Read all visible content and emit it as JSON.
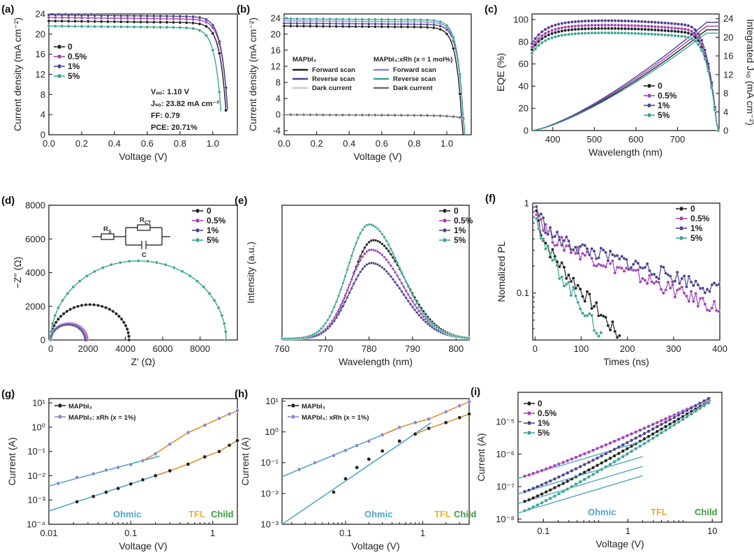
{
  "figure": {
    "colors": {
      "0": "#1f1f1f",
      "0.5%": "#a23fb5",
      "1%": "#4b3f8f",
      "5%": "#3aa394",
      "light_purple": "#8b86d1",
      "light_gray": "#c8c8c8",
      "dark_gray": "#6e6e6e",
      "fit": "#4da6c8",
      "fit_orange": "#e0902a",
      "ohmic": "#4da6c8",
      "tfl": "#e8b13a",
      "child": "#3a9a3a"
    }
  },
  "chart_data": [
    {
      "id": "a",
      "panel_label": "(a)",
      "type": "line",
      "xlabel": "Voltage (V)",
      "ylabel": "Current density (mA cm⁻²)",
      "xlim": [
        0,
        1.15
      ],
      "ylim": [
        0,
        24
      ],
      "xticks": [
        0.0,
        0.2,
        0.4,
        0.6,
        0.8,
        1.0
      ],
      "xtick_labels": [
        "0.0",
        "0.2",
        "0.4",
        "0.6",
        "0.8",
        "1.0"
      ],
      "yticks": [
        0,
        4,
        8,
        12,
        16,
        20,
        24
      ],
      "ytick_labels": [
        "0",
        "4",
        "8",
        "12",
        "16",
        "20",
        "24"
      ],
      "series": [
        {
          "name": "0",
          "jsc": 22.6,
          "voc": 1.09
        },
        {
          "name": "0.5%",
          "jsc": 23.3,
          "voc": 1.1
        },
        {
          "name": "1%",
          "jsc": 23.82,
          "voc": 1.1
        },
        {
          "name": "5%",
          "jsc": 21.6,
          "voc": 1.06
        }
      ],
      "annotations": [
        "Vₒₒ: 1.10 V",
        "Jₛₒ: 23.82 mA cm⁻²",
        "FF: 0.79",
        "PCE: 20.71%"
      ]
    },
    {
      "id": "b",
      "panel_label": "(b)",
      "type": "line",
      "xlabel": "Voltage (V)",
      "ylabel": "Current density (mA cm⁻²)",
      "xlim": [
        0,
        1.15
      ],
      "ylim": [
        -5,
        25
      ],
      "xticks": [
        0.0,
        0.2,
        0.4,
        0.6,
        0.8,
        1.0
      ],
      "xtick_labels": [
        "0.0",
        "0.2",
        "0.4",
        "0.6",
        "0.8",
        "1.0"
      ],
      "yticks": [
        -4,
        0,
        4,
        8,
        12,
        16,
        20,
        24
      ],
      "ytick_labels": [
        "-4",
        "0",
        "4",
        "8",
        "12",
        "16",
        "20",
        "24"
      ],
      "legend_groups": [
        {
          "title": "MAPbI₃",
          "entries": [
            "Forward scan",
            "Reverse scan",
            "Dark current"
          ]
        },
        {
          "title": "MAPbI₃:xRh (x = 1 mol%)",
          "entries": [
            "Forward scan",
            "Reverse scan",
            "Dark current"
          ]
        }
      ],
      "series": [
        {
          "group": 0,
          "entry": "Forward scan",
          "jsc": 22.0,
          "voc": 1.09
        },
        {
          "group": 0,
          "entry": "Reverse scan",
          "jsc": 22.7,
          "voc": 1.1
        },
        {
          "group": 0,
          "entry": "Dark current",
          "dark": true
        },
        {
          "group": 1,
          "entry": "Forward scan",
          "jsc": 23.3,
          "voc": 1.1
        },
        {
          "group": 1,
          "entry": "Reverse scan",
          "jsc": 23.8,
          "voc": 1.1
        },
        {
          "group": 1,
          "entry": "Dark current",
          "dark": true
        }
      ]
    },
    {
      "id": "c",
      "panel_label": "(c)",
      "type": "line",
      "xlabel": "Wavelength (nm)",
      "ylabel": "EQE (%)",
      "ylabel_right": "Integrated Jₛₒ (mA cm⁻²)",
      "xlim": [
        350,
        800
      ],
      "ylim": [
        0,
        105
      ],
      "ylim_right": [
        0,
        25
      ],
      "xticks": [
        400,
        500,
        600,
        700
      ],
      "xtick_labels": [
        "400",
        "500",
        "600",
        "700"
      ],
      "yticks": [
        0,
        20,
        40,
        60,
        80,
        100
      ],
      "ytick_labels": [
        "0",
        "20",
        "40",
        "60",
        "80",
        "100"
      ],
      "yticks_right": [
        0,
        4,
        8,
        12,
        16,
        20,
        24
      ],
      "ytick_labels_right": [
        "0",
        "4",
        "8",
        "12",
        "16",
        "20",
        "24"
      ],
      "series": [
        {
          "name": "0",
          "eqe_peak": 92,
          "integrated_end": 21.6
        },
        {
          "name": "0.5%",
          "eqe_peak": 95,
          "integrated_end": 22.4
        },
        {
          "name": "1%",
          "eqe_peak": 99,
          "integrated_end": 23.2
        },
        {
          "name": "5%",
          "eqe_peak": 88,
          "integrated_end": 20.9
        }
      ]
    },
    {
      "id": "d",
      "panel_label": "(d)",
      "type": "line",
      "xlabel": "Z' (Ω)",
      "ylabel": "−Z'' (Ω)",
      "xlim": [
        -100,
        10000
      ],
      "ylim": [
        0,
        8000
      ],
      "xticks": [
        0,
        2000,
        4000,
        6000,
        8000
      ],
      "xtick_labels": [
        "0",
        "2000",
        "4000",
        "6000",
        "8000"
      ],
      "yticks": [
        0,
        2000,
        4000,
        6000,
        8000
      ],
      "ytick_labels": [
        "0",
        "2000",
        "4000",
        "6000",
        "8000"
      ],
      "circuit_labels": [
        "R",
        "S",
        "R",
        "CT",
        "C"
      ],
      "series": [
        {
          "name": "0",
          "rct": 4200
        },
        {
          "name": "0.5%",
          "rct": 1950
        },
        {
          "name": "1%",
          "rct": 1850
        },
        {
          "name": "5%",
          "rct": 9400
        }
      ]
    },
    {
      "id": "e",
      "panel_label": "(e)",
      "type": "line",
      "xlabel": "Wavelength (nm)",
      "ylabel": "Intensity (a.u.)",
      "xlim": [
        760,
        803
      ],
      "ylim": [
        0,
        1.12
      ],
      "xticks": [
        760,
        770,
        780,
        790,
        800
      ],
      "xtick_labels": [
        "760",
        "770",
        "780",
        "790",
        "800"
      ],
      "series": [
        {
          "name": "0",
          "peak_nm": 781,
          "peak": 0.82
        },
        {
          "name": "0.5%",
          "peak_nm": 780.5,
          "peak": 0.74
        },
        {
          "name": "1%",
          "peak_nm": 780.5,
          "peak": 0.63
        },
        {
          "name": "5%",
          "peak_nm": 780,
          "peak": 0.95
        }
      ]
    },
    {
      "id": "f",
      "panel_label": "(f)",
      "type": "line",
      "xlabel": "Times (ns)",
      "ylabel": "Nomalized PL",
      "xlim": [
        -5,
        400
      ],
      "ylim": [
        0.03,
        1.0
      ],
      "yscale": "log",
      "xticks": [
        0,
        100,
        200,
        300,
        400
      ],
      "xtick_labels": [
        "0",
        "100",
        "200",
        "300",
        "400"
      ],
      "yticks": [
        0.1,
        1
      ],
      "ytick_labels": [
        "0.1",
        "1"
      ],
      "series": [
        {
          "name": "0",
          "tau_fast": 9,
          "tau_slow": 70
        },
        {
          "name": "0.5%",
          "tau_fast": 16,
          "tau_slow": 210
        },
        {
          "name": "1%",
          "tau_fast": 17,
          "tau_slow": 280
        },
        {
          "name": "5%",
          "tau_fast": 8,
          "tau_slow": 55
        }
      ]
    },
    {
      "id": "g",
      "panel_label": "(g)",
      "type": "scatter",
      "xlabel": "Voltage (V)",
      "ylabel": "Current (A)",
      "xscale": "log",
      "yscale": "log",
      "xlim": [
        0.01,
        2
      ],
      "ylim": [
        0.0001,
        15
      ],
      "xticks": [
        0.01,
        0.1,
        1
      ],
      "xtick_labels": [
        "0.01",
        "0.1",
        "1"
      ],
      "yticks": [
        0.0001,
        0.001,
        0.01,
        0.1,
        1,
        10
      ],
      "ytick_labels": [
        "10⁻⁴",
        "10⁻³",
        "10⁻²",
        "10⁻¹",
        "10⁰",
        "10¹"
      ],
      "legend": [
        "MAPbI₃",
        "MAPbI₃: xRh (x = 1%)"
      ],
      "regions": [
        "Ohmic",
        "TFL",
        "Child"
      ],
      "series": [
        {
          "name": "MAPbI₃",
          "v": [
            0.022,
            0.035,
            0.05,
            0.07,
            0.1,
            0.14,
            0.2,
            0.3,
            0.5,
            0.8,
            1.2,
            1.6,
            2.0
          ],
          "i": [
            0.00085,
            0.0014,
            0.0021,
            0.003,
            0.0046,
            0.0068,
            0.01,
            0.016,
            0.03,
            0.06,
            0.1,
            0.18,
            0.28
          ]
        },
        {
          "name": "MAPbI₃: xRh (x = 1%)",
          "v": [
            0.013,
            0.022,
            0.035,
            0.05,
            0.07,
            0.1,
            0.14,
            0.2,
            0.3,
            0.5,
            0.8,
            1.2,
            1.6,
            2.0
          ],
          "i": [
            0.0048,
            0.0085,
            0.012,
            0.017,
            0.022,
            0.029,
            0.042,
            0.08,
            0.2,
            0.6,
            1.2,
            2.3,
            3.5,
            4.8
          ]
        }
      ]
    },
    {
      "id": "h",
      "panel_label": "(h)",
      "type": "scatter",
      "xlabel": "Voltage (V)",
      "ylabel": "Current (A)",
      "xscale": "log",
      "yscale": "log",
      "xlim": [
        0.015,
        4
      ],
      "ylim": [
        0.001,
        12
      ],
      "xticks": [
        0.1,
        1
      ],
      "xtick_labels": [
        "0.1",
        "1"
      ],
      "yticks": [
        0.001,
        0.01,
        0.1,
        1,
        10
      ],
      "ytick_labels": [
        "10⁻³",
        "10⁻²",
        "10⁻¹",
        "10⁰",
        "10¹"
      ],
      "legend": [
        "MAPbI₃",
        "MAPbI₃: xRh (x = 1%)"
      ],
      "regions": [
        "Ohmic",
        "TFL",
        "Child"
      ],
      "series": [
        {
          "name": "MAPbI₃",
          "v": [
            0.07,
            0.1,
            0.14,
            0.2,
            0.3,
            0.5,
            0.8,
            1.2,
            2.0,
            3.0,
            4.0
          ],
          "i": [
            0.011,
            0.03,
            0.07,
            0.13,
            0.24,
            0.5,
            0.85,
            1.3,
            2.0,
            2.9,
            3.8
          ]
        },
        {
          "name": "MAPbI₃: xRh (x = 1%)",
          "v": [
            0.025,
            0.04,
            0.07,
            0.1,
            0.14,
            0.2,
            0.3,
            0.5,
            0.8,
            1.2,
            2.0,
            3.0,
            4.0
          ],
          "i": [
            0.06,
            0.1,
            0.17,
            0.25,
            0.36,
            0.5,
            0.8,
            1.4,
            2.0,
            2.6,
            4.5,
            7.0,
            9.5
          ]
        }
      ]
    },
    {
      "id": "i",
      "panel_label": "(i)",
      "type": "scatter",
      "xlabel": "Voltage (V)",
      "ylabel": "Current (A)",
      "xscale": "log",
      "yscale": "log",
      "xlim": [
        0.05,
        13
      ],
      "ylim": [
        8e-09,
        8e-05
      ],
      "xticks": [
        0.1,
        1,
        10
      ],
      "xtick_labels": [
        "0.1",
        "1",
        "10"
      ],
      "yticks": [
        1e-08,
        1e-07,
        1e-06,
        1e-05
      ],
      "ytick_labels": [
        "10⁻⁸",
        "10⁻⁷",
        "10⁻⁶",
        "10⁻⁵"
      ],
      "regions": [
        "Ohmic",
        "TFL",
        "Child"
      ],
      "series": [
        {
          "name": "0",
          "i_low": 3.5e-08,
          "i_high": 5e-05
        },
        {
          "name": "0.5%",
          "i_low": 2.1e-07,
          "i_high": 5.5e-05
        },
        {
          "name": "1%",
          "i_low": 7e-08,
          "i_high": 6e-05
        },
        {
          "name": "5%",
          "i_low": 1.8e-08,
          "i_high": 4.5e-05
        }
      ]
    }
  ]
}
